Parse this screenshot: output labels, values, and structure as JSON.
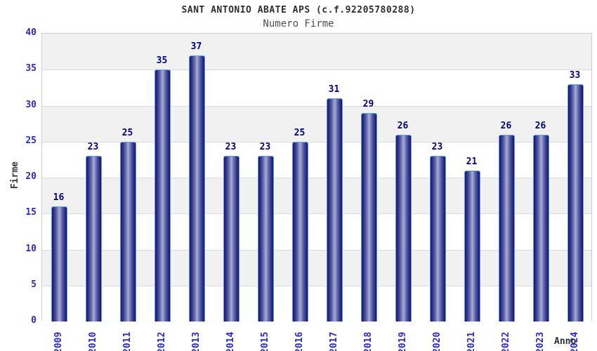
{
  "chart_data": {
    "type": "bar",
    "title": "SANT ANTONIO ABATE APS (c.f.92205780288)",
    "subtitle": "Numero Firme",
    "xlabel": "Anno",
    "ylabel": "Firme",
    "categories": [
      "2009",
      "2010",
      "2011",
      "2012",
      "2013",
      "2014",
      "2015",
      "2016",
      "2017",
      "2018",
      "2019",
      "2020",
      "2021",
      "2022",
      "2023",
      "2024"
    ],
    "values": [
      16,
      23,
      25,
      35,
      37,
      23,
      23,
      25,
      31,
      29,
      26,
      23,
      21,
      26,
      26,
      33
    ],
    "ylim": [
      0,
      40
    ],
    "ytick_step": 5,
    "yticks": [
      0,
      5,
      10,
      15,
      20,
      25,
      30,
      35,
      40
    ],
    "grid": "horizontal-bands-alternating",
    "legend": "none",
    "bar_value_labels": true
  },
  "colors": {
    "bar_edge_dark": "#15156b",
    "bar_center_light": "#aab1d9",
    "bar_border": "#59a0e8",
    "axis_tick_label": "#2a2acc",
    "value_label": "#000080",
    "title_text": "#2e2e2e",
    "subtitle_text": "#4f4f4f",
    "band_gray": "#f1f1f1",
    "band_white": "#ffffff",
    "gridline": "#dcdcdc",
    "plot_border": "#cccccc",
    "background": "#ffffff"
  }
}
